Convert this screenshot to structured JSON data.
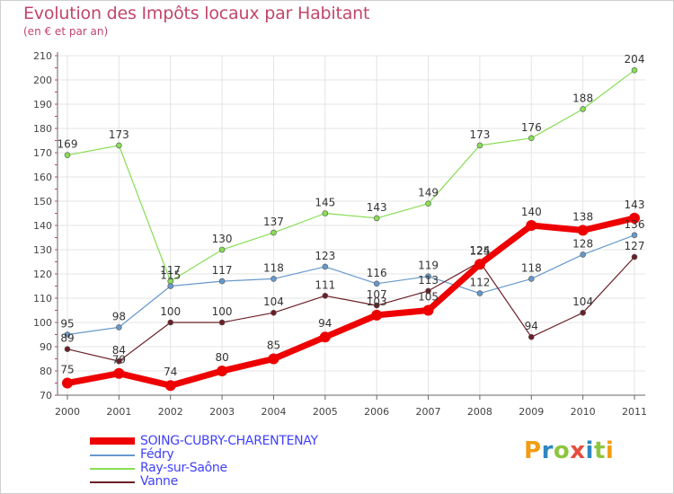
{
  "chart_data": {
    "type": "line",
    "title": "Evolution des Impôts locaux par Habitant",
    "subtitle": "(en € et par an)",
    "xlabel": "",
    "ylabel": "",
    "ylim": [
      70,
      210
    ],
    "yticks": [
      70,
      80,
      90,
      100,
      110,
      120,
      130,
      140,
      150,
      160,
      170,
      180,
      190,
      200,
      210
    ],
    "categories": [
      "2000",
      "2001",
      "2002",
      "2003",
      "2004",
      "2005",
      "2006",
      "2007",
      "2008",
      "2009",
      "2010",
      "2011"
    ],
    "grid": "horizontal",
    "legend_position": "bottom-left",
    "series": [
      {
        "name": "Ray-sur-Saône",
        "color": "#88dd55",
        "values": [
          169,
          173,
          117,
          130,
          137,
          145,
          143,
          149,
          173,
          176,
          188,
          204
        ],
        "labels": [
          "169",
          "173",
          "117",
          "130",
          "137",
          "145",
          "143",
          "149",
          "173",
          "176",
          "188",
          "204"
        ]
      },
      {
        "name": "Fédry",
        "color": "#6699cc",
        "values": [
          95,
          98,
          115,
          117,
          118,
          123,
          116,
          119,
          112,
          118,
          128,
          136
        ],
        "labels": [
          "95",
          "98",
          "115",
          "117",
          "118",
          "123",
          "116",
          "119",
          "112",
          "118",
          "128",
          "136"
        ]
      },
      {
        "name": "Vanne",
        "color": "#6b1f26",
        "values": [
          89,
          84,
          100,
          100,
          104,
          111,
          107,
          113,
          125,
          94,
          104,
          127
        ],
        "labels": [
          "89",
          "84",
          "100",
          "100",
          "104",
          "111",
          "107",
          "113",
          "125",
          "94",
          "104",
          "127"
        ]
      },
      {
        "name": "SOING-CUBRY-CHARENTENAY",
        "color": "#ee0000",
        "values": [
          75,
          79,
          74,
          80,
          85,
          94,
          103,
          105,
          124,
          140,
          138,
          143
        ],
        "labels": [
          "75",
          "79",
          "74",
          "80",
          "85",
          "94",
          "103",
          "105",
          "124",
          "140",
          "138",
          "143"
        ]
      }
    ],
    "legend_order": [
      "SOING-CUBRY-CHARENTENAY",
      "Fédry",
      "Ray-sur-Saône",
      "Vanne"
    ]
  },
  "logo": {
    "text": "Proxiti",
    "letters": [
      "P",
      "r",
      "o",
      "x",
      "i",
      "t",
      "i"
    ],
    "colors": [
      "#f39c12",
      "#2e86c1",
      "#8cc63f",
      "#e74c3c",
      "#2e86c1",
      "#8cc63f",
      "#f39c12"
    ]
  }
}
